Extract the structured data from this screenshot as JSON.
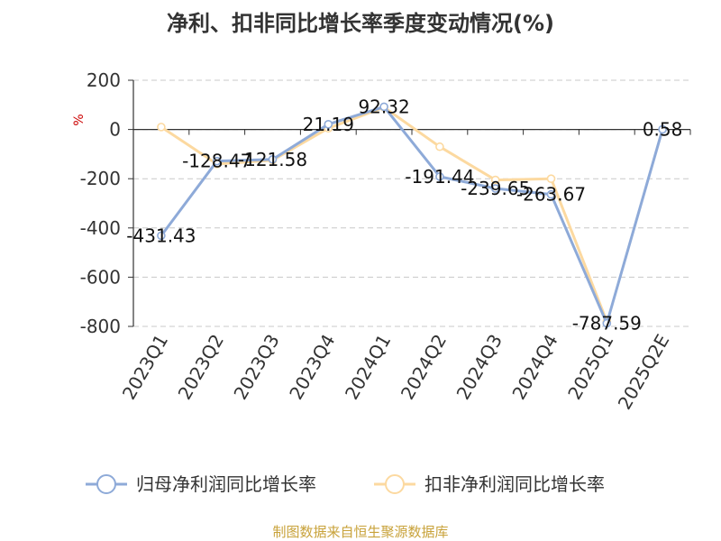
{
  "chart_data": {
    "type": "line",
    "title": "净利、扣非同比增长率季度变动情况(%)",
    "ylabel": "%",
    "ylim": [
      -800,
      200
    ],
    "yticks": [
      200,
      0,
      -200,
      -400,
      -600,
      -800
    ],
    "categories": [
      "2023Q1",
      "2023Q2",
      "2023Q3",
      "2023Q4",
      "2024Q1",
      "2024Q2",
      "2024Q3",
      "2024Q4",
      "2025Q1",
      "2025Q2E"
    ],
    "grid": true,
    "legend_position": "bottom",
    "series": [
      {
        "name": "归母净利润同比增长率",
        "color": "#8eaad8",
        "values": [
          -431.43,
          -128.47,
          -121.58,
          21.19,
          92.32,
          -191.44,
          -239.65,
          -263.67,
          -787.59,
          0.58
        ],
        "labels": [
          "-431.43",
          "-128.47",
          "-121.58",
          "21.19",
          "92.32",
          "-191.44",
          "-239.65",
          "-263.67",
          "-787.59",
          "0.58"
        ]
      },
      {
        "name": "扣非净利润同比增长率",
        "color": "#fcd9a0",
        "values": [
          10,
          -140,
          -125,
          5,
          90,
          -70,
          -205,
          -200,
          -780,
          null
        ],
        "labels": []
      }
    ],
    "source": "制图数据来自恒生聚源数据库"
  }
}
